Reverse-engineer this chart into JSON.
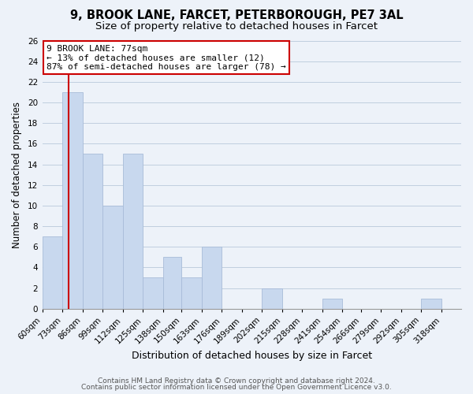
{
  "title1": "9, BROOK LANE, FARCET, PETERBOROUGH, PE7 3AL",
  "title2": "Size of property relative to detached houses in Farcet",
  "xlabel": "Distribution of detached houses by size in Farcet",
  "ylabel": "Number of detached properties",
  "bin_edges": [
    60,
    73,
    86,
    99,
    112,
    125,
    138,
    150,
    163,
    176,
    189,
    202,
    215,
    228,
    241,
    254,
    266,
    279,
    292,
    305,
    318,
    331
  ],
  "bar_heights": [
    7,
    21,
    15,
    10,
    15,
    3,
    5,
    3,
    6,
    0,
    0,
    2,
    0,
    0,
    1,
    0,
    0,
    0,
    0,
    1,
    0
  ],
  "bar_color": "#c8d8ee",
  "bar_edgecolor": "#a8bcd8",
  "grid_color": "#c0cedf",
  "background_color": "#edf2f9",
  "property_line_x": 77,
  "property_line_color": "#cc0000",
  "annotation_line1": "9 BROOK LANE: 77sqm",
  "annotation_line2": "← 13% of detached houses are smaller (12)",
  "annotation_line3": "87% of semi-detached houses are larger (78) →",
  "annotation_box_facecolor": "#ffffff",
  "annotation_box_edgecolor": "#cc0000",
  "ylim": [
    0,
    26
  ],
  "yticks": [
    0,
    2,
    4,
    6,
    8,
    10,
    12,
    14,
    16,
    18,
    20,
    22,
    24,
    26
  ],
  "footer1": "Contains HM Land Registry data © Crown copyright and database right 2024.",
  "footer2": "Contains public sector information licensed under the Open Government Licence v3.0.",
  "title1_fontsize": 10.5,
  "title2_fontsize": 9.5,
  "xlabel_fontsize": 9,
  "ylabel_fontsize": 8.5,
  "tick_fontsize": 7.5,
  "annotation_fontsize": 8,
  "footer_fontsize": 6.5
}
